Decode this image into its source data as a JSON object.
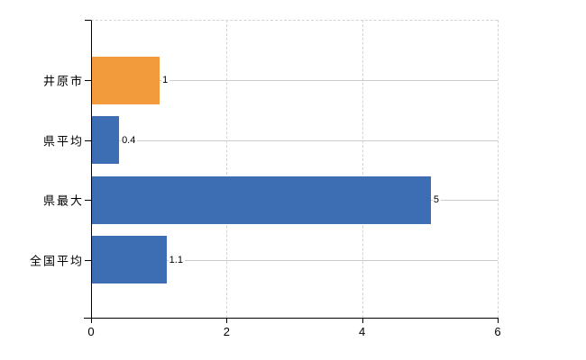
{
  "chart_data": {
    "type": "bar",
    "orientation": "horizontal",
    "title": "",
    "xlabel": "",
    "ylabel": "",
    "categories": [
      "井原市",
      "県平均",
      "県最大",
      "全国平均"
    ],
    "values": [
      1,
      0.4,
      5,
      1.1
    ],
    "value_labels": [
      "1",
      "0.4",
      "5",
      "1.1"
    ],
    "bar_colors": [
      "#F29B3C",
      "#3D6EB3",
      "#3D6EB3",
      "#3D6EB3"
    ],
    "xlim": [
      0,
      6
    ],
    "x_ticks": [
      0,
      2,
      4,
      6
    ],
    "x_tick_labels": [
      "0",
      "2",
      "4",
      "6"
    ],
    "legend": "none",
    "grid": {
      "vertical": "dashed light gray at x ticks and plot top/right frame",
      "horizontal": "light gray leader line at each category center, behind bars"
    }
  },
  "colors": {
    "bar_blue": "#3D6EB3",
    "bar_orange": "#F29B3C",
    "axis": "#000000",
    "grid_dashed": "#d4d4d4",
    "leader_line": "#c9cdc9",
    "text": "#000000",
    "background": "#ffffff"
  }
}
